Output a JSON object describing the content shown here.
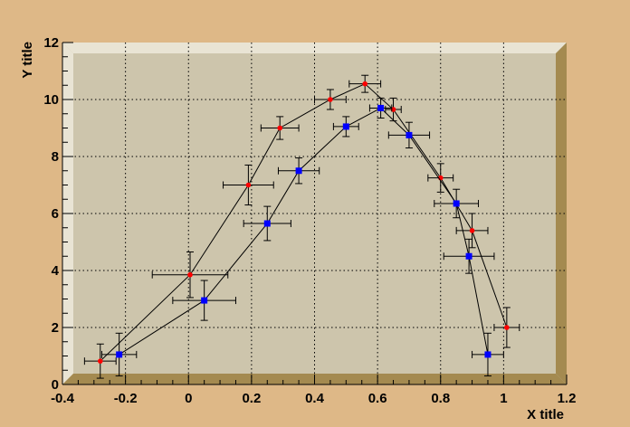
{
  "chart_data": {
    "type": "scatter",
    "title": "",
    "xlabel": "X title",
    "ylabel": "Y title",
    "xlim": [
      -0.4,
      1.2
    ],
    "ylim": [
      0,
      12
    ],
    "x_ticks": [
      "-0.4",
      "-0.2",
      "0",
      "0.2",
      "0.4",
      "0.6",
      "0.8",
      "1",
      "1.2"
    ],
    "y_ticks": [
      "0",
      "2",
      "4",
      "6",
      "8",
      "10",
      "12"
    ],
    "grid": true,
    "colors": {
      "canvas": "#deb887",
      "frame": "#cdc5ac",
      "frame_top": "#e9e4d4",
      "frame_side": "#a48a50",
      "grid": "#000000",
      "line": "#000000"
    },
    "series": [
      {
        "color": "#ff0000",
        "marker": "circle",
        "points": [
          {
            "x": -0.28,
            "y": 0.82,
            "ex": 0.05,
            "ey": 0.6
          },
          {
            "x": 0.005,
            "y": 3.85,
            "ex": 0.12,
            "ey": 0.8
          },
          {
            "x": 0.19,
            "y": 7.0,
            "ex": 0.08,
            "ey": 0.7
          },
          {
            "x": 0.29,
            "y": 9.0,
            "ex": 0.06,
            "ey": 0.4
          },
          {
            "x": 0.45,
            "y": 10.0,
            "ex": 0.05,
            "ey": 0.35
          },
          {
            "x": 0.56,
            "y": 10.55,
            "ex": 0.05,
            "ey": 0.3
          },
          {
            "x": 0.65,
            "y": 9.65,
            "ex": 0.025,
            "ey": 0.4
          },
          {
            "x": 0.8,
            "y": 7.25,
            "ex": 0.04,
            "ey": 0.5
          },
          {
            "x": 0.9,
            "y": 5.4,
            "ex": 0.05,
            "ey": 0.6
          },
          {
            "x": 1.01,
            "y": 2.0,
            "ex": 0.04,
            "ey": 0.7
          }
        ]
      },
      {
        "color": "#0000ff",
        "marker": "square",
        "points": [
          {
            "x": -0.22,
            "y": 1.05,
            "ex": 0.055,
            "ey": 0.75
          },
          {
            "x": 0.05,
            "y": 2.95,
            "ex": 0.1,
            "ey": 0.7
          },
          {
            "x": 0.25,
            "y": 5.65,
            "ex": 0.075,
            "ey": 0.6
          },
          {
            "x": 0.35,
            "y": 7.5,
            "ex": 0.065,
            "ey": 0.45
          },
          {
            "x": 0.5,
            "y": 9.05,
            "ex": 0.04,
            "ey": 0.35
          },
          {
            "x": 0.61,
            "y": 9.7,
            "ex": 0.035,
            "ey": 0.35
          },
          {
            "x": 0.7,
            "y": 8.75,
            "ex": 0.065,
            "ey": 0.45
          },
          {
            "x": 0.85,
            "y": 6.35,
            "ex": 0.07,
            "ey": 0.5
          },
          {
            "x": 0.89,
            "y": 4.5,
            "ex": 0.08,
            "ey": 0.6
          },
          {
            "x": 0.95,
            "y": 1.05,
            "ex": 0.05,
            "ey": 0.75
          }
        ]
      }
    ]
  }
}
